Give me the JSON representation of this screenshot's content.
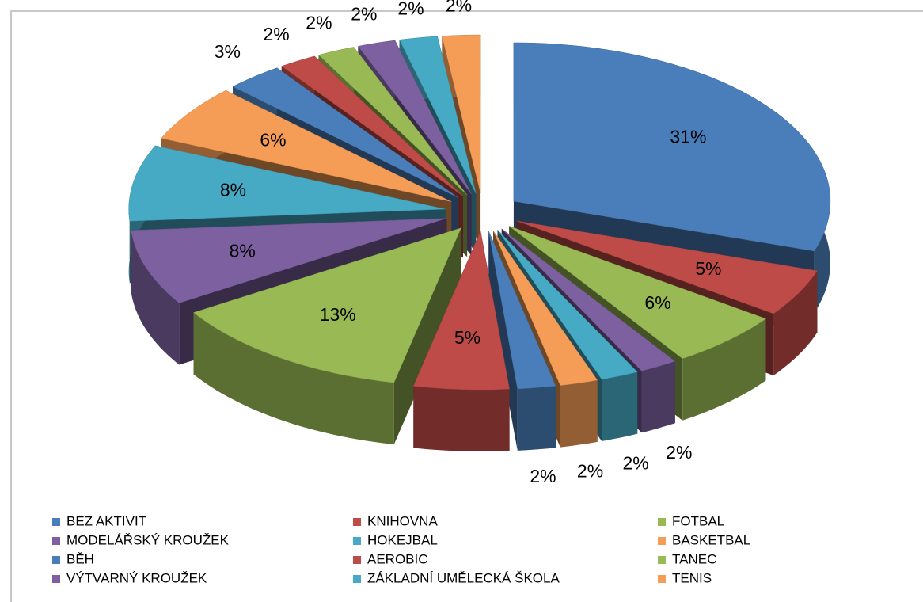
{
  "chart_data": {
    "type": "pie3d",
    "categories": [
      "BEZ AKTIVIT",
      "KNIHOVNA",
      "FOTBAL",
      "MODELÁŘSKÝ KROUŽEK",
      "HOKEJBAL",
      "BASKETBAL",
      "BĚH",
      "AEROBIC",
      "TANEC",
      "VÝTVARNÝ KROUŽEK",
      "ZÁKLADNÍ UMĚLECKÁ ŠKOLA",
      "TENIS",
      null,
      null,
      null,
      null,
      null,
      null
    ],
    "values": [
      31,
      5,
      6,
      2,
      2,
      2,
      2,
      5,
      13,
      8,
      8,
      6,
      3,
      2,
      2,
      2,
      2,
      2
    ],
    "value_labels": [
      "31%",
      "5%",
      "6%",
      "2%",
      "2%",
      "2%",
      "2%",
      "5%",
      "13%",
      "8%",
      "8%",
      "6%",
      "3%",
      "2%",
      "2%",
      "2%",
      "2%",
      "2%"
    ],
    "colors": [
      "#4a7ebb",
      "#be4b48",
      "#98b954",
      "#7d60a0",
      "#46aac5",
      "#f59d56",
      "#4a7ebb",
      "#be4b48",
      "#98b954",
      "#7d60a0",
      "#46aac5",
      "#f59d56",
      "#4a7ebb",
      "#be4b48",
      "#98b954",
      "#7d60a0",
      "#46aac5",
      "#f59d56"
    ],
    "legend": "bottom"
  }
}
